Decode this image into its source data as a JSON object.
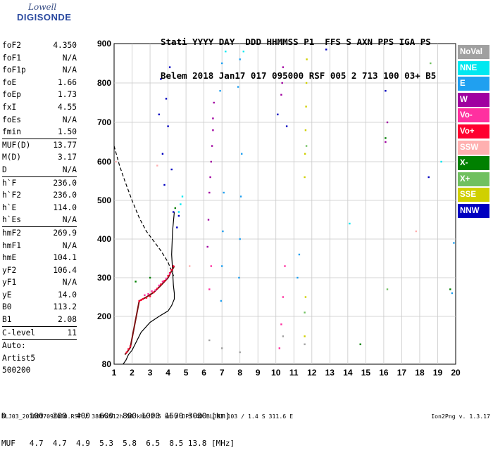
{
  "logo": {
    "top": "Lowell",
    "name": "DIGISONDE"
  },
  "header": {
    "line1": "Stati YYYY DAY  DDD HHMMSS P1  FFS S AXN PPS IGA PS",
    "line2": "Belem 2018 Jan17 017 095000 RSF 005 2 713 100 03+ B5"
  },
  "params": [
    {
      "label": "foF2",
      "value": "4.350"
    },
    {
      "label": "foF1",
      "value": "N/A"
    },
    {
      "label": "foF1p",
      "value": "N/A"
    },
    {
      "label": "foE",
      "value": "1.66"
    },
    {
      "label": "foEp",
      "value": "1.73"
    },
    {
      "label": "fxI",
      "value": "4.55"
    },
    {
      "label": "foEs",
      "value": "N/A"
    },
    {
      "label": "fmin",
      "value": "1.50",
      "sep_after": true
    },
    {
      "label": "MUF(D)",
      "value": "13.77"
    },
    {
      "label": "M(D)",
      "value": "3.17"
    },
    {
      "label": "D",
      "value": "N/A",
      "sep_after": true
    },
    {
      "label": "h`F",
      "value": "236.0"
    },
    {
      "label": "h`F2",
      "value": "236.0"
    },
    {
      "label": "h`E",
      "value": "114.0"
    },
    {
      "label": "h`Es",
      "value": "N/A",
      "sep_after": true
    },
    {
      "label": "hmF2",
      "value": "269.9"
    },
    {
      "label": "hmF1",
      "value": "N/A"
    },
    {
      "label": "hmE",
      "value": "104.1"
    },
    {
      "label": "yF2",
      "value": "106.4"
    },
    {
      "label": "yF1",
      "value": "N/A"
    },
    {
      "label": "yE",
      "value": "14.0"
    },
    {
      "label": "B0",
      "value": "113.2"
    },
    {
      "label": "B1",
      "value": "2.08",
      "sep_after": true
    },
    {
      "label": "C-level",
      "value": "11",
      "sep_after": true
    },
    {
      "label": "Auto:",
      "value": ""
    },
    {
      "label": "Artist5",
      "value": ""
    },
    {
      "label": "500200",
      "value": ""
    }
  ],
  "legend": [
    {
      "label": "NoVal",
      "color": "#a0a0a0"
    },
    {
      "label": "NNE",
      "color": "#00e8f0"
    },
    {
      "label": "E",
      "color": "#20a0f0"
    },
    {
      "label": "W",
      "color": "#a000a0"
    },
    {
      "label": "Vo-",
      "color": "#ff30a0"
    },
    {
      "label": "Vo+",
      "color": "#ff0030"
    },
    {
      "label": "SSW",
      "color": "#ffb0b0"
    },
    {
      "label": "X-",
      "color": "#008000"
    },
    {
      "label": "X+",
      "color": "#70c060"
    },
    {
      "label": "SSE",
      "color": "#d0d000"
    },
    {
      "label": "NNW",
      "color": "#0000c0"
    }
  ],
  "footer": {
    "line1": "D     100  200  400  600  800 1000 1500 3000 [km]",
    "line2": "MUF   4.7  4.7  4.9  5.3  5.8  6.5  8.5 13.8 [MHz]",
    "source": "BLJ03_2018017095000.RSF / 380fx512h 50 kHz 2.5 km / DPS-4D BLJ03 103 / 1.4 S 311.6 E",
    "version": "Ion2Png v. 1.3.17"
  },
  "chart_data": {
    "type": "scatter",
    "x_ticks": [
      "1",
      "2",
      "3",
      "4",
      "5",
      "6",
      "7",
      "8",
      "9",
      "10",
      "11",
      "12",
      "13",
      "14",
      "15",
      "16",
      "17",
      "18",
      "19",
      "20"
    ],
    "y_ticks": [
      "80",
      "200",
      "300",
      "400",
      "500",
      "600",
      "700",
      "800",
      "900"
    ],
    "xlim": [
      1,
      20
    ],
    "ylim": [
      80,
      900
    ],
    "grid": true,
    "xlabel": "",
    "ylabel": "",
    "series": [
      {
        "name": "Vo+",
        "color": "#ff0030",
        "x": [
          1.7,
          1.8,
          1.9,
          2.4,
          2.5,
          2.6,
          2.8,
          3.0,
          3.2,
          3.4,
          3.6,
          3.8,
          4.0,
          4.1,
          4.2,
          4.3
        ],
        "y": [
          110,
          118,
          125,
          240,
          242,
          245,
          248,
          252,
          262,
          272,
          283,
          292,
          305,
          312,
          320,
          330
        ]
      },
      {
        "name": "Vo-",
        "color": "#ff30a0",
        "x": [
          2.7,
          2.9,
          3.1,
          3.3,
          3.5,
          3.7,
          3.9,
          4.1,
          10.2,
          10.3,
          10.4,
          10.5,
          6.3,
          6.4
        ],
        "y": [
          255,
          258,
          265,
          268,
          280,
          290,
          298,
          310,
          120,
          180,
          250,
          330,
          270,
          330
        ]
      },
      {
        "name": "W",
        "color": "#a000a0",
        "x": [
          6.2,
          6.25,
          6.3,
          6.35,
          6.4,
          6.45,
          6.5,
          6.5,
          6.55,
          10.3,
          10.35,
          10.4,
          16.1,
          16.2
        ],
        "y": [
          380,
          450,
          520,
          560,
          600,
          640,
          680,
          710,
          750,
          770,
          800,
          840,
          650,
          700
        ]
      },
      {
        "name": "E",
        "color": "#20a0f0",
        "x": [
          6.95,
          7.0,
          7.05,
          7.1,
          7.95,
          8.0,
          8.05,
          8.1,
          11.2,
          11.3,
          6.9,
          7.0,
          7.9,
          8.0,
          19.8,
          19.9
        ],
        "y": [
          240,
          330,
          420,
          520,
          300,
          400,
          510,
          620,
          300,
          360,
          780,
          850,
          790,
          860,
          260,
          390
        ]
      },
      {
        "name": "SSE",
        "color": "#d0d000",
        "x": [
          11.6,
          11.62,
          11.65,
          11.68,
          11.7,
          11.72,
          11.6,
          11.65
        ],
        "y": [
          560,
          620,
          680,
          740,
          800,
          860,
          150,
          250
        ]
      },
      {
        "name": "NNW",
        "color": "#0000c0",
        "x": [
          3.5,
          3.6,
          3.7,
          3.8,
          3.9,
          4.0,
          4.1,
          4.2,
          4.3,
          4.5,
          4.6,
          10.1,
          10.6,
          12.8,
          16.1,
          18.5
        ],
        "y": [
          720,
          810,
          620,
          540,
          760,
          690,
          840,
          580,
          470,
          430,
          460,
          720,
          690,
          885,
          780,
          560
        ]
      },
      {
        "name": "NNE",
        "color": "#00e8f0",
        "x": [
          4.6,
          4.7,
          4.8,
          7.2,
          8.2,
          14.1,
          19.2
        ],
        "y": [
          470,
          490,
          510,
          880,
          880,
          440,
          600
        ]
      },
      {
        "name": "X-",
        "color": "#008000",
        "x": [
          2.2,
          3.0,
          4.4,
          14.7,
          16.1,
          19.7
        ],
        "y": [
          290,
          300,
          480,
          130,
          660,
          270
        ]
      },
      {
        "name": "X+",
        "color": "#70c060",
        "x": [
          11.6,
          11.7,
          16.2,
          18.6
        ],
        "y": [
          210,
          640,
          270,
          850
        ]
      },
      {
        "name": "SSW",
        "color": "#ffb0b0",
        "x": [
          1.1,
          3.4,
          5.2,
          17.8
        ],
        "y": [
          600,
          590,
          330,
          420
        ]
      },
      {
        "name": "NoVal",
        "color": "#a0a0a0",
        "x": [
          6.3,
          7.0,
          8.0,
          10.4,
          11.6
        ],
        "y": [
          140,
          120,
          110,
          150,
          130
        ]
      }
    ],
    "profile_solid": {
      "x": [
        1.5,
        1.66,
        1.8,
        2.0,
        2.5,
        3.0,
        3.5,
        4.0,
        4.2,
        4.35,
        4.35,
        4.3,
        4.25,
        4.2,
        4.25,
        4.35
      ],
      "y": [
        80,
        90,
        104,
        115,
        160,
        185,
        200,
        214,
        228,
        245,
        260,
        280,
        320,
        360,
        420,
        470
      ]
    },
    "profile_dashed": {
      "x": [
        1.0,
        1.3,
        1.6,
        2.0,
        2.4,
        2.8,
        3.2,
        3.6,
        4.0,
        4.35
      ],
      "y": [
        640,
        590,
        550,
        500,
        455,
        420,
        395,
        370,
        340,
        300
      ]
    },
    "trace": {
      "x": [
        1.6,
        1.75,
        1.9,
        2.4,
        2.8,
        3.2,
        3.6,
        4.0,
        4.2,
        4.35
      ],
      "y": [
        104,
        112,
        122,
        240,
        250,
        262,
        280,
        300,
        318,
        330
      ]
    }
  }
}
